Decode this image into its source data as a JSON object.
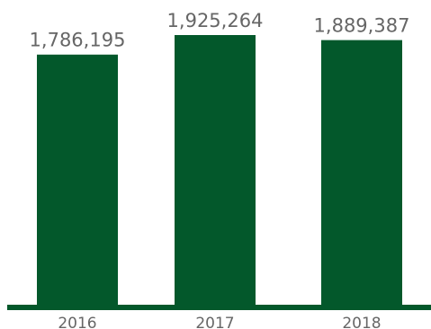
{
  "chart_data": {
    "type": "bar",
    "categories": [
      "2016",
      "2017",
      "2018"
    ],
    "values": [
      1786195,
      1925264,
      1889387
    ],
    "value_labels": [
      "1,786,195",
      "1,925,264",
      "1,889,387"
    ],
    "title": "",
    "xlabel": "",
    "ylabel": "",
    "ylim": [
      0,
      1925264
    ],
    "grid": false,
    "legend": "none"
  },
  "colors": {
    "bar": "#03582b",
    "axis": "#03582b",
    "text": "#666666"
  }
}
